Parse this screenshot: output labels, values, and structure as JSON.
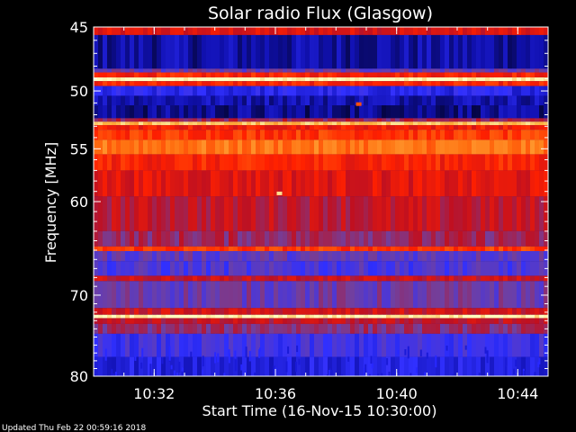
{
  "chart_data": {
    "type": "heatmap",
    "title": "Solar radio Flux (Glasgow)",
    "ylabel": "Frequency [MHz]",
    "xlabel": "Start Time (16-Nov-15 10:30:00)",
    "ylim": [
      45,
      80
    ],
    "y_scale": "log",
    "y_inverted": true,
    "yticks": [
      45,
      50,
      55,
      60,
      70,
      80
    ],
    "ytick_labels": [
      "45",
      "50",
      "55",
      "60",
      "70",
      "80"
    ],
    "xlim": [
      "10:30",
      "10:45"
    ],
    "xticks": [
      "10:32",
      "10:36",
      "10:40",
      "10:44"
    ],
    "xtick_labels": [
      "10:32",
      "10:36",
      "10:40",
      "10:44"
    ],
    "colormap": [
      "#000010",
      "#1010b0",
      "#3030ff",
      "#7040a0",
      "#c01020",
      "#ff2000",
      "#ff7010",
      "#ffb040",
      "#ffffc0"
    ],
    "frequency_bands": [
      {
        "from": 45.0,
        "to": 45.6,
        "level": 0.55
      },
      {
        "from": 45.6,
        "to": 48.2,
        "level": 0.12
      },
      {
        "from": 48.2,
        "to": 48.5,
        "level": 0.35
      },
      {
        "from": 48.5,
        "to": 48.9,
        "level": 0.62
      },
      {
        "from": 48.9,
        "to": 49.2,
        "level": 1.0
      },
      {
        "from": 49.2,
        "to": 49.6,
        "level": 0.62
      },
      {
        "from": 49.6,
        "to": 50.4,
        "level": 0.22
      },
      {
        "from": 50.4,
        "to": 51.2,
        "level": 0.14
      },
      {
        "from": 51.2,
        "to": 52.3,
        "level": 0.1
      },
      {
        "from": 52.3,
        "to": 52.6,
        "level": 0.45
      },
      {
        "from": 52.6,
        "to": 52.9,
        "level": 0.9
      },
      {
        "from": 52.9,
        "to": 53.3,
        "level": 0.6
      },
      {
        "from": 53.3,
        "to": 54.2,
        "level": 0.66
      },
      {
        "from": 54.2,
        "to": 55.5,
        "level": 0.76
      },
      {
        "from": 55.5,
        "to": 57.0,
        "level": 0.62
      },
      {
        "from": 57.0,
        "to": 59.5,
        "level": 0.56
      },
      {
        "from": 59.5,
        "to": 63.0,
        "level": 0.5
      },
      {
        "from": 63.0,
        "to": 64.6,
        "level": 0.44
      },
      {
        "from": 64.6,
        "to": 65.1,
        "level": 0.66
      },
      {
        "from": 65.1,
        "to": 66.2,
        "level": 0.34
      },
      {
        "from": 66.2,
        "to": 67.8,
        "level": 0.3
      },
      {
        "from": 67.8,
        "to": 68.4,
        "level": 0.52
      },
      {
        "from": 68.4,
        "to": 71.5,
        "level": 0.36
      },
      {
        "from": 71.5,
        "to": 72.3,
        "level": 0.52
      },
      {
        "from": 72.3,
        "to": 72.7,
        "level": 0.98
      },
      {
        "from": 72.7,
        "to": 73.4,
        "level": 0.5
      },
      {
        "from": 73.4,
        "to": 74.6,
        "level": 0.42
      },
      {
        "from": 74.6,
        "to": 77.5,
        "level": 0.27
      },
      {
        "from": 77.5,
        "to": 80.0,
        "level": 0.2
      }
    ],
    "annotations": [
      {
        "time": "10:36:08",
        "freq": 59.2,
        "level": 0.95
      },
      {
        "time": "10:38:45",
        "freq": 51.1,
        "level": 0.7
      }
    ]
  },
  "footer": {
    "updated": "Updated Thu Feb 22 00:59:16 2018"
  }
}
